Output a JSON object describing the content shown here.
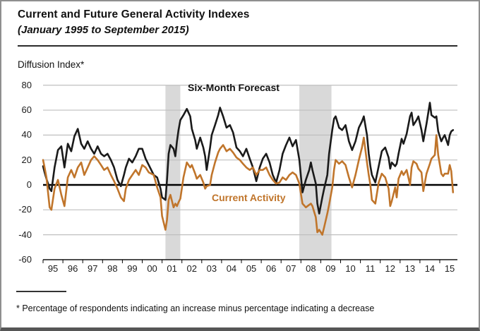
{
  "header": {
    "title": "Current and Future General Activity Indexes",
    "subtitle": "(January 1995 to September 2015)"
  },
  "footnote": "* Percentage of respondents indicating an increase minus percentage indicating a decrease",
  "colors": {
    "forecast_line": "#1a1a1a",
    "current_line": "#c0752b",
    "recession_band": "#d9d9d9",
    "gridline": "#bfbfbf",
    "zero_line": "#000000",
    "axis_line": "#000000"
  },
  "chart_data": {
    "type": "line",
    "title": "Current and Future General Activity Indexes",
    "subtitle": "(January 1995 to September 2015)",
    "ylabel": "Diffusion Index*",
    "xlabel": "",
    "ylim": [
      -60,
      80
    ],
    "y_ticks": [
      80,
      60,
      40,
      20,
      0,
      -20,
      -40,
      -60
    ],
    "x_tick_labels": [
      "95",
      "96",
      "97",
      "98",
      "99",
      "00",
      "01",
      "02",
      "03",
      "04",
      "05",
      "06",
      "07",
      "08",
      "09",
      "10",
      "11",
      "12",
      "13",
      "14",
      "15"
    ],
    "x_range": [
      1995.0,
      2015.9
    ],
    "grid": "horizontal",
    "legend": [
      {
        "label": "Six-Month Forecast",
        "color": "#1a1a1a",
        "placement": "inline-top"
      },
      {
        "label": "Current Activity",
        "color": "#c0752b",
        "placement": "inline-middle"
      }
    ],
    "recession_bands": [
      {
        "start": 2001.17,
        "end": 2001.92
      },
      {
        "start": 2007.92,
        "end": 2009.54
      }
    ],
    "x": [
      1995.0,
      1995.08,
      1995.17,
      1995.33,
      1995.42,
      1995.58,
      1995.75,
      1995.92,
      1996.08,
      1996.25,
      1996.42,
      1996.58,
      1996.75,
      1996.92,
      1997.08,
      1997.25,
      1997.42,
      1997.58,
      1997.75,
      1997.92,
      1998.08,
      1998.25,
      1998.42,
      1998.58,
      1998.75,
      1998.92,
      1999.08,
      1999.17,
      1999.33,
      1999.5,
      1999.67,
      1999.83,
      2000.0,
      2000.17,
      2000.33,
      2000.58,
      2000.75,
      2000.92,
      2001.0,
      2001.17,
      2001.25,
      2001.33,
      2001.42,
      2001.58,
      2001.67,
      2001.75,
      2001.83,
      2001.92,
      2002.08,
      2002.25,
      2002.42,
      2002.5,
      2002.67,
      2002.75,
      2002.92,
      2003.08,
      2003.17,
      2003.25,
      2003.42,
      2003.5,
      2003.67,
      2003.83,
      2003.92,
      2004.08,
      2004.25,
      2004.42,
      2004.58,
      2004.75,
      2004.92,
      2005.08,
      2005.25,
      2005.42,
      2005.58,
      2005.75,
      2005.92,
      2006.08,
      2006.25,
      2006.42,
      2006.58,
      2006.75,
      2006.92,
      2007.08,
      2007.25,
      2007.42,
      2007.58,
      2007.75,
      2007.92,
      2008.08,
      2008.25,
      2008.42,
      2008.5,
      2008.58,
      2008.75,
      2008.83,
      2008.92,
      2009.08,
      2009.17,
      2009.33,
      2009.42,
      2009.58,
      2009.67,
      2009.75,
      2009.92,
      2010.08,
      2010.25,
      2010.42,
      2010.58,
      2010.75,
      2010.92,
      2011.08,
      2011.17,
      2011.33,
      2011.42,
      2011.5,
      2011.58,
      2011.75,
      2011.92,
      2012.08,
      2012.25,
      2012.42,
      2012.5,
      2012.58,
      2012.75,
      2012.83,
      2012.92,
      2013.08,
      2013.17,
      2013.33,
      2013.5,
      2013.58,
      2013.67,
      2013.83,
      2013.92,
      2014.08,
      2014.17,
      2014.33,
      2014.5,
      2014.58,
      2014.75,
      2014.83,
      2014.92,
      2015.08,
      2015.17,
      2015.25,
      2015.42,
      2015.5,
      2015.58,
      2015.67
    ],
    "series": [
      {
        "name": "Six-Month Forecast",
        "color": "#1a1a1a",
        "values": [
          15,
          10,
          5,
          -3,
          -5,
          14,
          28,
          31,
          14,
          33,
          27,
          39,
          45,
          33,
          29,
          35,
          29,
          25,
          31,
          25,
          23,
          25,
          20,
          14,
          4,
          -1,
          8,
          14,
          21,
          18,
          23,
          29,
          29,
          21,
          16,
          8,
          6,
          -3,
          -10,
          -12,
          4,
          25,
          32,
          29,
          23,
          35,
          44,
          52,
          56,
          61,
          55,
          45,
          36,
          29,
          38,
          30,
          23,
          12,
          30,
          40,
          48,
          56,
          62,
          55,
          46,
          48,
          42,
          30,
          27,
          23,
          29,
          21,
          14,
          3,
          14,
          21,
          25,
          18,
          8,
          2,
          12,
          25,
          32,
          38,
          31,
          36,
          20,
          -6,
          4,
          12,
          18,
          12,
          1,
          -15,
          -23,
          -10,
          -3,
          8,
          25,
          44,
          53,
          55,
          46,
          44,
          48,
          35,
          28,
          35,
          46,
          51,
          55,
          40,
          25,
          15,
          8,
          2,
          15,
          27,
          30,
          22,
          13,
          18,
          15,
          17,
          25,
          37,
          33,
          41,
          55,
          58,
          48,
          52,
          55,
          44,
          35,
          49,
          66,
          56,
          54,
          55,
          43,
          35,
          38,
          40,
          32,
          40,
          43,
          44
        ]
      },
      {
        "name": "Current Activity",
        "color": "#c0752b",
        "values": [
          20,
          14,
          6,
          -18,
          -20,
          -3,
          4,
          -8,
          -17,
          6,
          12,
          6,
          14,
          18,
          8,
          14,
          20,
          23,
          20,
          16,
          12,
          14,
          8,
          3,
          -3,
          -10,
          -13,
          -3,
          4,
          8,
          12,
          8,
          16,
          14,
          10,
          8,
          -2,
          -10,
          -25,
          -36,
          -28,
          -12,
          -8,
          -18,
          -15,
          -17,
          -14,
          -11,
          6,
          18,
          14,
          16,
          9,
          5,
          8,
          2,
          -3,
          -1,
          0,
          8,
          18,
          26,
          29,
          32,
          27,
          29,
          26,
          22,
          20,
          17,
          14,
          12,
          14,
          8,
          12,
          12,
          14,
          8,
          4,
          1,
          2,
          6,
          4,
          8,
          10,
          8,
          1,
          -15,
          -18,
          -16,
          -15,
          -17,
          -26,
          -38,
          -36,
          -40,
          -34,
          -23,
          -16,
          -2,
          12,
          20,
          17,
          19,
          16,
          6,
          -2,
          8,
          20,
          30,
          38,
          18,
          8,
          0,
          -12,
          -15,
          2,
          9,
          6,
          -3,
          -17,
          -13,
          -2,
          -10,
          5,
          11,
          8,
          12,
          0,
          14,
          19,
          17,
          13,
          10,
          -5,
          9,
          17,
          21,
          24,
          40,
          24,
          9,
          7,
          9,
          9,
          16,
          11,
          -6
        ]
      }
    ]
  }
}
